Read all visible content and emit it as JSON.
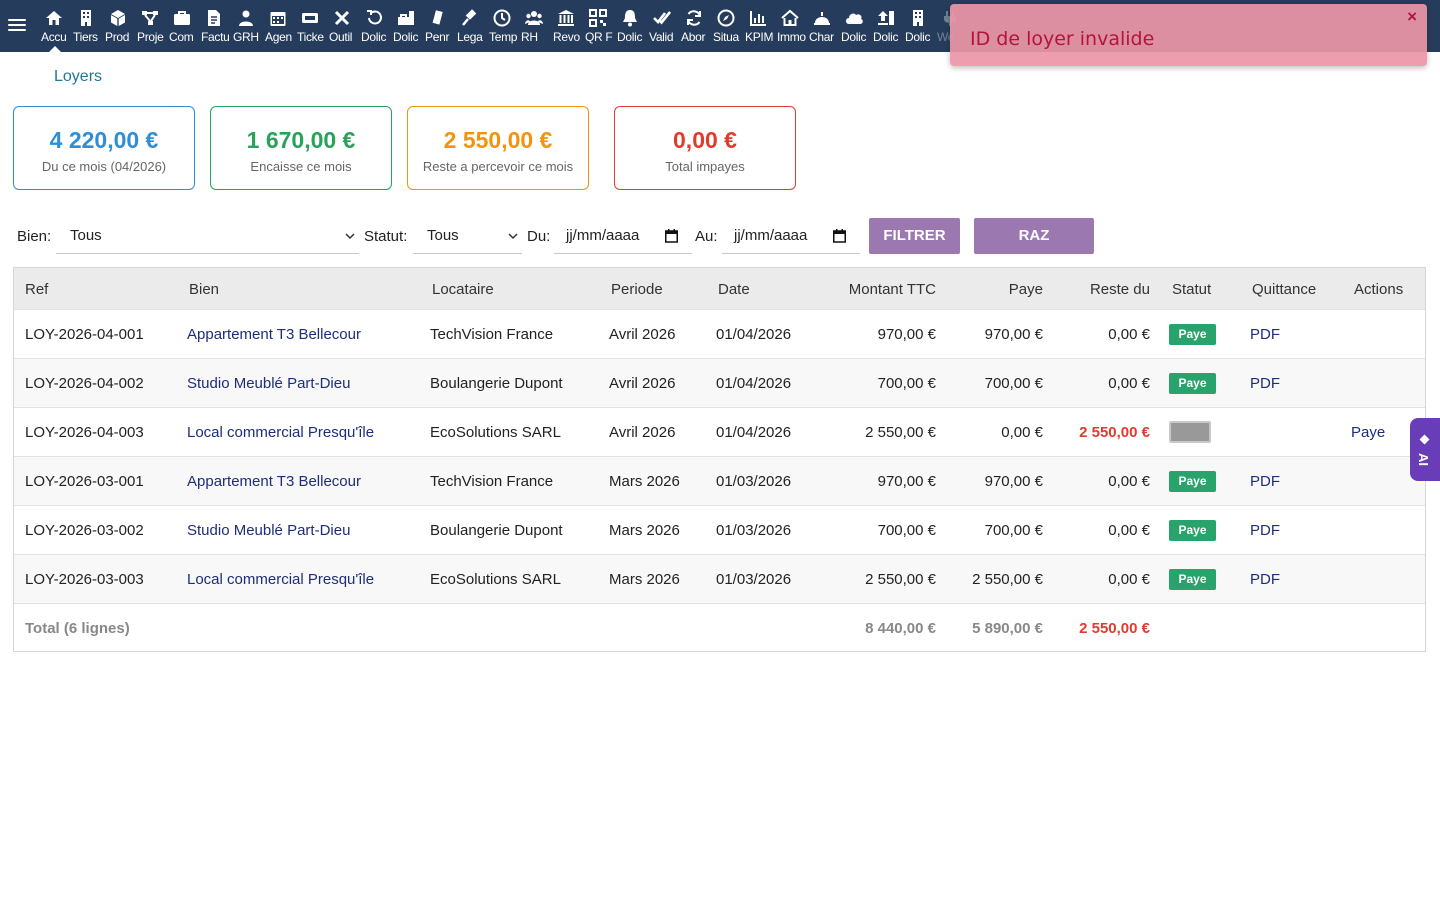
{
  "nav": {
    "items": [
      {
        "icon": "home-icon",
        "label": "Accu"
      },
      {
        "icon": "building-icon",
        "label": "Tiers"
      },
      {
        "icon": "cube-icon",
        "label": "Prod"
      },
      {
        "icon": "project-icon",
        "label": "Proje"
      },
      {
        "icon": "briefcase-icon",
        "label": "Com"
      },
      {
        "icon": "invoice-icon",
        "label": "Factu"
      },
      {
        "icon": "users-icon",
        "label": "GRH"
      },
      {
        "icon": "calendar-icon",
        "label": "Agen"
      },
      {
        "icon": "ticket-icon",
        "label": "Ticke"
      },
      {
        "icon": "tools-icon",
        "label": "Outil"
      },
      {
        "icon": "undo-icon",
        "label": "Dolic"
      },
      {
        "icon": "store-icon",
        "label": "Dolic"
      },
      {
        "icon": "pen-icon",
        "label": "Penr"
      },
      {
        "icon": "gavel-icon",
        "label": "Lega"
      },
      {
        "icon": "clock-icon",
        "label": "Temp"
      },
      {
        "icon": "team-icon",
        "label": "RH"
      },
      {
        "icon": "bank-icon",
        "label": "Revo"
      },
      {
        "icon": "qrcode-icon",
        "label": "QR F"
      },
      {
        "icon": "bell-icon",
        "label": "Dolic"
      },
      {
        "icon": "check-double-icon",
        "label": "Valid"
      },
      {
        "icon": "refresh-icon",
        "label": "Abor"
      },
      {
        "icon": "compass-icon",
        "label": "Situa"
      },
      {
        "icon": "bar-chart-icon",
        "label": "KPIM"
      },
      {
        "icon": "house-icon",
        "label": "Immo"
      },
      {
        "icon": "dome-icon",
        "label": "Char"
      },
      {
        "icon": "cloud-icon",
        "label": "Dolic"
      },
      {
        "icon": "upload-icon",
        "label": "Dolic"
      },
      {
        "icon": "building-icon",
        "label": "Dolic"
      },
      {
        "icon": "plug-icon",
        "label": "We"
      }
    ]
  },
  "toast": {
    "message": "ID de loyer invalide",
    "close": "×"
  },
  "page": {
    "title": "Loyers"
  },
  "kpis": [
    {
      "value": "4 220,00 €",
      "label": "Du ce mois (04/2026)",
      "color": "#2e8fd6"
    },
    {
      "value": "1 670,00 €",
      "label": "Encaisse ce mois",
      "color": "#27a35a"
    },
    {
      "value": "2 550,00 €",
      "label": "Reste a percevoir ce mois",
      "color": "#f0940f"
    },
    {
      "value": "0,00 €",
      "label": "Total impayes",
      "color": "#e03c2e"
    }
  ],
  "filters": {
    "bien_label": "Bien:",
    "bien_value": "Tous",
    "statut_label": "Statut:",
    "statut_value": "Tous",
    "du_label": "Du:",
    "du_value": "jj/mm/aaaa",
    "au_label": "Au:",
    "au_value": "jj/mm/aaaa",
    "filter_button": "FILTRER",
    "reset_button": "RAZ"
  },
  "table": {
    "columns": [
      "Ref",
      "Bien",
      "Locataire",
      "Periode",
      "Date",
      "Montant TTC",
      "Paye",
      "Reste du",
      "Statut",
      "Quittance",
      "Actions"
    ],
    "rows": [
      {
        "ref": "LOY-2026-04-001",
        "bien": "Appartement T3 Bellecour",
        "locataire": "TechVision France",
        "periode": "Avril 2026",
        "date": "01/04/2026",
        "montant": "970,00 €",
        "paye": "970,00 €",
        "reste": "0,00 €",
        "reste_alert": false,
        "statut": "Paye",
        "quittance": "PDF",
        "action": ""
      },
      {
        "ref": "LOY-2026-04-002",
        "bien": "Studio Meublé Part-Dieu",
        "locataire": "Boulangerie Dupont",
        "periode": "Avril 2026",
        "date": "01/04/2026",
        "montant": "700,00 €",
        "paye": "700,00 €",
        "reste": "0,00 €",
        "reste_alert": false,
        "statut": "Paye",
        "quittance": "PDF",
        "action": ""
      },
      {
        "ref": "LOY-2026-04-003",
        "bien": "Local commercial Presqu'île",
        "locataire": "EcoSolutions SARL",
        "periode": "Avril 2026",
        "date": "01/04/2026",
        "montant": "2 550,00 €",
        "paye": "0,00 €",
        "reste": "2 550,00 €",
        "reste_alert": true,
        "statut": "",
        "quittance": "",
        "action": "Paye"
      },
      {
        "ref": "LOY-2026-03-001",
        "bien": "Appartement T3 Bellecour",
        "locataire": "TechVision France",
        "periode": "Mars 2026",
        "date": "01/03/2026",
        "montant": "970,00 €",
        "paye": "970,00 €",
        "reste": "0,00 €",
        "reste_alert": false,
        "statut": "Paye",
        "quittance": "PDF",
        "action": ""
      },
      {
        "ref": "LOY-2026-03-002",
        "bien": "Studio Meublé Part-Dieu",
        "locataire": "Boulangerie Dupont",
        "periode": "Mars 2026",
        "date": "01/03/2026",
        "montant": "700,00 €",
        "paye": "700,00 €",
        "reste": "0,00 €",
        "reste_alert": false,
        "statut": "Paye",
        "quittance": "PDF",
        "action": ""
      },
      {
        "ref": "LOY-2026-03-003",
        "bien": "Local commercial Presqu'île",
        "locataire": "EcoSolutions SARL",
        "periode": "Mars 2026",
        "date": "01/03/2026",
        "montant": "2 550,00 €",
        "paye": "2 550,00 €",
        "reste": "0,00 €",
        "reste_alert": false,
        "statut": "Paye",
        "quittance": "PDF",
        "action": ""
      }
    ],
    "total": {
      "label": "Total (6 lignes)",
      "montant": "8 440,00 €",
      "paye": "5 890,00 €",
      "reste": "2 550,00 €"
    }
  },
  "ai_tab": {
    "label": "AI"
  }
}
